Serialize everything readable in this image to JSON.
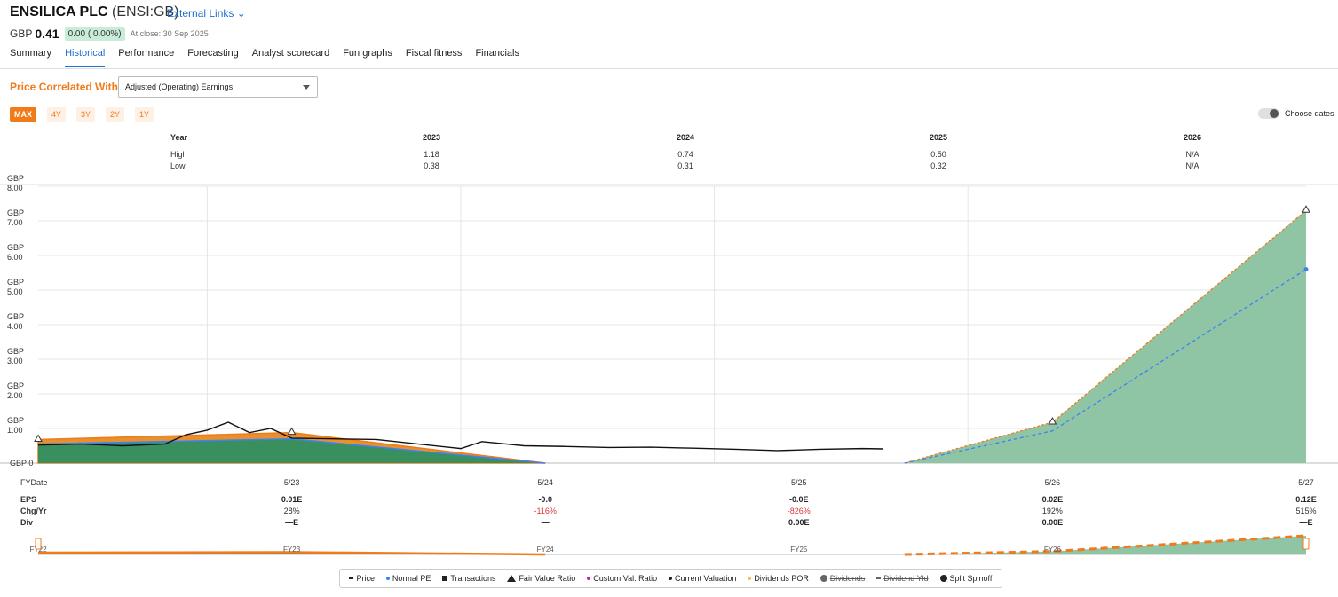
{
  "header": {
    "company": "ENSILICA PLC",
    "ticker": "(ENSI:GB)",
    "external_links": "External Links",
    "currency": "GBP",
    "price": "0.41",
    "change": "0.00 ( 0.00%)",
    "close_text": "At close: 30 Sep 2025"
  },
  "tabs": [
    "Summary",
    "Historical",
    "Performance",
    "Forecasting",
    "Analyst scorecard",
    "Fun graphs",
    "Fiscal fitness",
    "Financials"
  ],
  "active_tab": "Historical",
  "controls": {
    "price_correlated_label": "Price Correlated With",
    "select_value": "Adjusted (Operating) Earnings",
    "ranges": [
      "MAX",
      "4Y",
      "3Y",
      "2Y",
      "1Y"
    ],
    "active_range": "MAX",
    "choose_dates": "Choose dates"
  },
  "year_table": {
    "headers": [
      "Year",
      "High",
      "Low"
    ],
    "years": [
      "2023",
      "2024",
      "2025",
      "2026"
    ],
    "high": [
      "1.18",
      "0.74",
      "0.50",
      "N/A"
    ],
    "low": [
      "0.38",
      "0.31",
      "0.32",
      "N/A"
    ]
  },
  "fy_table": {
    "row_labels": [
      "FYDate",
      "EPS",
      "Chg/Yr",
      "Div"
    ],
    "dates": [
      "5/23",
      "5/24",
      "5/25",
      "5/26",
      "5/27"
    ],
    "eps": [
      "0.01E",
      "-0.0",
      "-0.0E",
      "0.02E",
      "0.12E"
    ],
    "chg": [
      "28%",
      "-116%",
      "-826%",
      "192%",
      "515%"
    ],
    "div": [
      "—E",
      "—",
      "0.00E",
      "0.00E",
      "—E"
    ]
  },
  "navigator_labels": [
    "FY22",
    "FY23",
    "FY24",
    "FY25",
    "FY26"
  ],
  "legend": [
    {
      "label": "Price",
      "icon": "dash",
      "color": "#222222"
    },
    {
      "label": "Normal PE",
      "icon": "dot",
      "color": "#3b82f6"
    },
    {
      "label": "Transactions",
      "icon": "square",
      "color": "#222222"
    },
    {
      "label": "Fair Value Ratio",
      "icon": "triangle",
      "color": "#222222"
    },
    {
      "label": "Custom Val. Ratio",
      "icon": "dot",
      "color": "#d020a8"
    },
    {
      "label": "Current Valuation",
      "icon": "dot",
      "color": "#222222"
    },
    {
      "label": "Dividends POR",
      "icon": "dot",
      "color": "#f2c14e"
    },
    {
      "label": "Dividends",
      "icon": "bigdot",
      "color": "#666666",
      "strike": true
    },
    {
      "label": "Dividend Yld",
      "icon": "dash",
      "color": "#666666",
      "strike": true
    },
    {
      "label": "Split Spinoff",
      "icon": "bigdot",
      "color": "#222222"
    }
  ],
  "colors": {
    "accent": "#f07b1b",
    "link": "#1f6fd1",
    "value_area": "#2e8b57",
    "forecast_area": "#8fc4a4",
    "normal_pe": "#3b82f6",
    "fair_value": "#f07b1b"
  },
  "chart_data": {
    "type": "area",
    "y_unit": "GBP",
    "y_ticks": [
      0,
      1,
      2,
      3,
      4,
      5,
      6,
      7,
      8
    ],
    "y_tick_labels": [
      "GBP 0",
      "GBP\n1.00",
      "GBP\n2.00",
      "GBP\n3.00",
      "GBP\n4.00",
      "GBP\n5.00",
      "GBP\n6.00",
      "GBP\n7.00",
      "GBP\n8.00"
    ],
    "ylim": [
      0,
      8
    ],
    "x_range": [
      "2022-05",
      "2027-05"
    ],
    "x_ticks": [
      "2023",
      "2024",
      "2025",
      "2026"
    ],
    "fair_value": [
      {
        "x": "2022-05",
        "y": 0.68
      },
      {
        "x": "2023-05",
        "y": 0.88
      },
      {
        "x": "2024-05",
        "y": 0.0
      },
      {
        "x": "2025-10",
        "y": 0.0
      },
      {
        "x": "2026-05",
        "y": 1.18
      },
      {
        "x": "2027-05",
        "y": 7.3
      }
    ],
    "normal_pe": [
      {
        "x": "2022-05",
        "y": 0.55
      },
      {
        "x": "2023-05",
        "y": 0.7
      },
      {
        "x": "2024-05",
        "y": 0.0
      },
      {
        "x": "2025-10",
        "y": 0.0
      },
      {
        "x": "2026-05",
        "y": 0.93
      },
      {
        "x": "2027-05",
        "y": 5.6
      }
    ],
    "price": [
      {
        "x": "2022-05",
        "y": 0.52
      },
      {
        "x": "2022-07",
        "y": 0.55
      },
      {
        "x": "2022-09",
        "y": 0.5
      },
      {
        "x": "2022-11",
        "y": 0.55
      },
      {
        "x": "2022-12",
        "y": 0.82
      },
      {
        "x": "2023-01",
        "y": 0.95
      },
      {
        "x": "2023-02",
        "y": 1.18
      },
      {
        "x": "2023-03",
        "y": 0.88
      },
      {
        "x": "2023-04",
        "y": 1.0
      },
      {
        "x": "2023-05",
        "y": 0.72
      },
      {
        "x": "2023-07",
        "y": 0.7
      },
      {
        "x": "2023-09",
        "y": 0.68
      },
      {
        "x": "2023-11",
        "y": 0.55
      },
      {
        "x": "2024-01",
        "y": 0.42
      },
      {
        "x": "2024-02",
        "y": 0.62
      },
      {
        "x": "2024-04",
        "y": 0.5
      },
      {
        "x": "2024-06",
        "y": 0.48
      },
      {
        "x": "2024-08",
        "y": 0.45
      },
      {
        "x": "2024-10",
        "y": 0.46
      },
      {
        "x": "2024-12",
        "y": 0.43
      },
      {
        "x": "2025-02",
        "y": 0.4
      },
      {
        "x": "2025-04",
        "y": 0.36
      },
      {
        "x": "2025-06",
        "y": 0.4
      },
      {
        "x": "2025-08",
        "y": 0.42
      },
      {
        "x": "2025-09",
        "y": 0.41
      }
    ]
  }
}
